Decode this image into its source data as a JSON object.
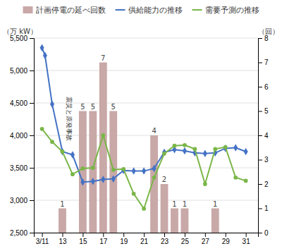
{
  "chart_data": {
    "type": "line",
    "xlim": [
      10.2,
      32.2
    ],
    "xticks": [
      {
        "value": 11,
        "label": "3/11"
      },
      13,
      15,
      17,
      19,
      21,
      23,
      25,
      27,
      29,
      31
    ],
    "ylim": [
      2500,
      5500
    ],
    "yticks": [
      {
        "value": 2500,
        "label": "2,500"
      },
      {
        "value": 3000,
        "label": "3,000"
      },
      {
        "value": 3500,
        "label": "3,500"
      },
      {
        "value": 4000,
        "label": "4,000"
      },
      {
        "value": 4500,
        "label": "4,500"
      },
      {
        "value": 5000,
        "label": "5,000"
      },
      {
        "value": 5500,
        "label": "5,500"
      }
    ],
    "y2lim": [
      0,
      8
    ],
    "y2ticks": [
      0,
      1,
      2,
      3,
      4,
      5,
      6,
      7,
      8
    ],
    "y_label": "（万 kW）",
    "y2_label": "（回）",
    "grid": true,
    "legend": "top",
    "annotations": [
      {
        "text": "震災と原発事故",
        "x": 13,
        "y": 4600
      }
    ],
    "series": [
      {
        "name": "計画停電の延べ回数",
        "type": "bar",
        "axis": "y2",
        "color": "#c9a8a8",
        "data_labels": true,
        "x": [
          13,
          15,
          16,
          17,
          18,
          22,
          23,
          24,
          25,
          28
        ],
        "values": [
          1,
          5,
          5,
          7,
          5,
          4,
          2,
          1,
          1,
          1
        ]
      },
      {
        "name": "供給能力の推移",
        "type": "line",
        "color": "#4472c4",
        "marker": "diamond",
        "x": [
          11,
          11.3,
          12,
          13,
          14,
          15,
          16,
          17,
          18,
          19,
          20,
          21,
          22,
          23,
          24,
          25,
          26,
          27,
          28,
          29,
          30,
          31
        ],
        "values": [
          5350,
          5230,
          4480,
          3750,
          3700,
          3280,
          3290,
          3320,
          3330,
          3460,
          3450,
          3450,
          3490,
          3740,
          3780,
          3760,
          3730,
          3720,
          3730,
          3800,
          3810,
          3750
        ]
      },
      {
        "name": "需要予測の推移",
        "type": "line",
        "color": "#7ab648",
        "marker": "circle",
        "x": [
          11,
          12,
          13,
          14,
          15,
          16,
          17,
          18,
          19,
          20,
          21,
          22,
          23,
          24,
          25,
          26,
          27,
          28,
          29,
          30,
          31
        ],
        "values": [
          4100,
          3900,
          3750,
          3400,
          3490,
          3500,
          4000,
          3470,
          3480,
          3100,
          2870,
          3350,
          3720,
          3840,
          3850,
          3790,
          3250,
          3790,
          3820,
          3350,
          3300
        ]
      }
    ]
  }
}
